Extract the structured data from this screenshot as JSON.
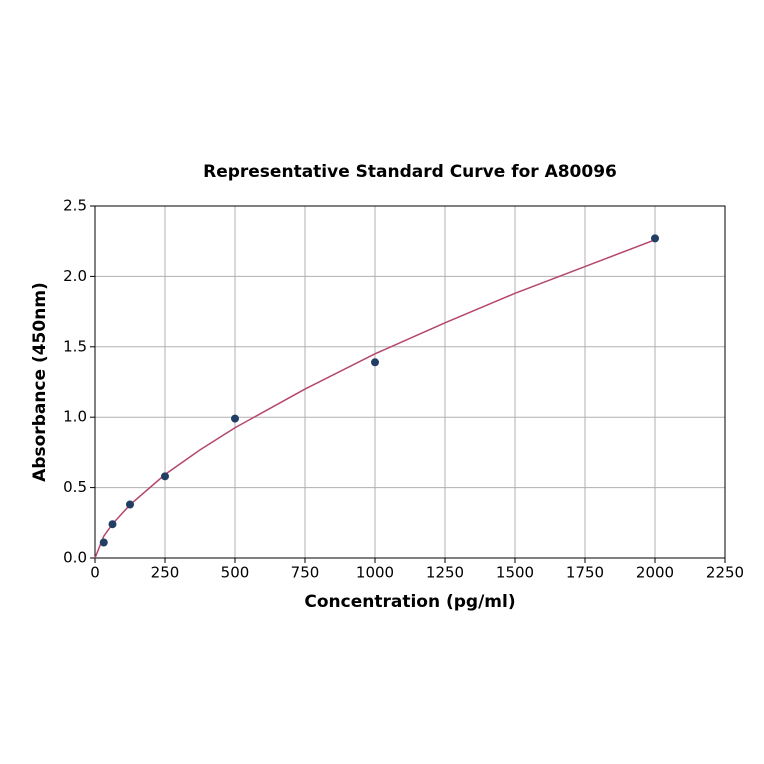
{
  "chart_data": {
    "type": "scatter",
    "title": "Representative Standard Curve for A80096",
    "x_label": "Concentration (pg/ml)",
    "y_label": "Absorbance (450nm)",
    "xlim": [
      0,
      2250
    ],
    "ylim": [
      0,
      2.5
    ],
    "xticks": [
      0,
      250,
      500,
      750,
      1000,
      1250,
      1500,
      1750,
      2000,
      2250
    ],
    "yticks": [
      {
        "value": 0,
        "label": "0.0"
      },
      {
        "value": 0.5,
        "label": "0.5"
      },
      {
        "value": 1,
        "label": "1.0"
      },
      {
        "value": 1.5,
        "label": "1.5"
      },
      {
        "value": 2,
        "label": "2.0"
      },
      {
        "value": 2.5,
        "label": "2.5"
      }
    ],
    "grid": true,
    "series": [
      {
        "kind": "line",
        "color": "#b5476b",
        "x": [
          0,
          31.25,
          62.5,
          125,
          250,
          375,
          500,
          750,
          1000,
          1250,
          1500,
          1750,
          2000
        ],
        "values": [
          0,
          0.155,
          0.242,
          0.378,
          0.593,
          0.768,
          0.925,
          1.2,
          1.45,
          1.67,
          1.88,
          2.07,
          2.26
        ]
      },
      {
        "kind": "points",
        "color": "#233e64",
        "x": [
          31.25,
          62.5,
          125,
          250,
          500,
          1000,
          2000
        ],
        "values": [
          0.11,
          0.24,
          0.38,
          0.58,
          0.99,
          1.39,
          2.27
        ]
      }
    ]
  }
}
